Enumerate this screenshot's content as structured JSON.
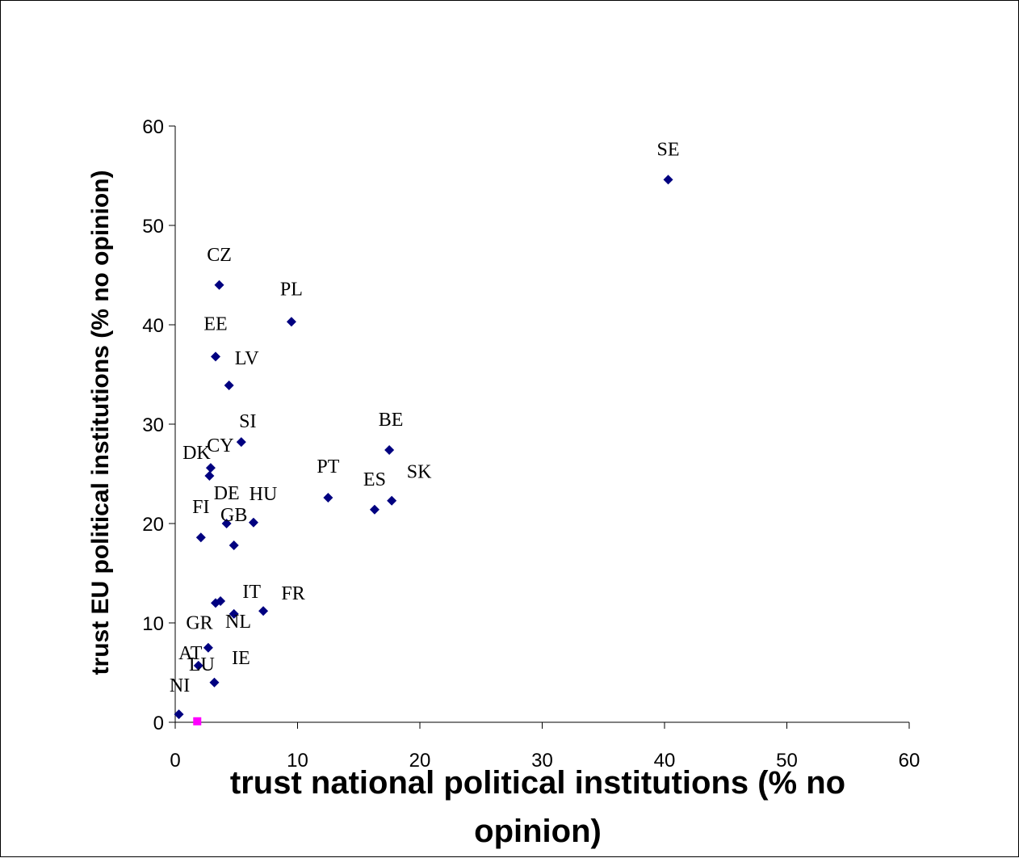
{
  "chart_data": {
    "type": "scatter",
    "title": "",
    "xlabel": "trust national political institutions  (% no opinion)",
    "ylabel": "trust EU political institutions  (% no opinion)",
    "xlim": [
      0,
      60
    ],
    "ylim": [
      0,
      60
    ],
    "xticks": [
      0,
      10,
      20,
      30,
      40,
      50,
      60
    ],
    "yticks": [
      0,
      10,
      20,
      30,
      40,
      50,
      60
    ],
    "grid": false,
    "colors": {
      "points": "#000080",
      "highlight": "#ff00ff",
      "axis": "#000000"
    },
    "points": [
      {
        "label": "SE",
        "x": 40.3,
        "y": 54.6
      },
      {
        "label": "CZ",
        "x": 3.6,
        "y": 44.0
      },
      {
        "label": "PL",
        "x": 9.5,
        "y": 40.3
      },
      {
        "label": "EE",
        "x": 3.3,
        "y": 36.8
      },
      {
        "label": "LV",
        "x": 4.4,
        "y": 33.9
      },
      {
        "label": "SI",
        "x": 5.4,
        "y": 28.2
      },
      {
        "label": "CY",
        "x": 2.9,
        "y": 25.6
      },
      {
        "label": "DK",
        "x": 2.8,
        "y": 24.8
      },
      {
        "label": "BE",
        "x": 17.5,
        "y": 27.4
      },
      {
        "label": "PT",
        "x": 12.5,
        "y": 22.6
      },
      {
        "label": "ES",
        "x": 16.3,
        "y": 21.4
      },
      {
        "label": "SK",
        "x": 17.7,
        "y": 22.3
      },
      {
        "label": "DE",
        "x": 4.2,
        "y": 20.0
      },
      {
        "label": "HU",
        "x": 6.4,
        "y": 20.1
      },
      {
        "label": "FI",
        "x": 2.1,
        "y": 18.6
      },
      {
        "label": "GB",
        "x": 4.8,
        "y": 17.8
      },
      {
        "label": "GR",
        "x": 3.3,
        "y": 12.0
      },
      {
        "label": "NL",
        "x": 3.7,
        "y": 12.2
      },
      {
        "label": "IT",
        "x": 4.8,
        "y": 10.9
      },
      {
        "label": "FR",
        "x": 7.2,
        "y": 11.2
      },
      {
        "label": "LU",
        "x": 2.7,
        "y": 7.5
      },
      {
        "label": "AT",
        "x": 1.9,
        "y": 5.7
      },
      {
        "label": "IE",
        "x": 3.2,
        "y": 4.0
      },
      {
        "label": "NI",
        "x": 0.3,
        "y": 0.8
      }
    ],
    "highlight_point": {
      "x": 1.8,
      "y": 0.1
    }
  }
}
